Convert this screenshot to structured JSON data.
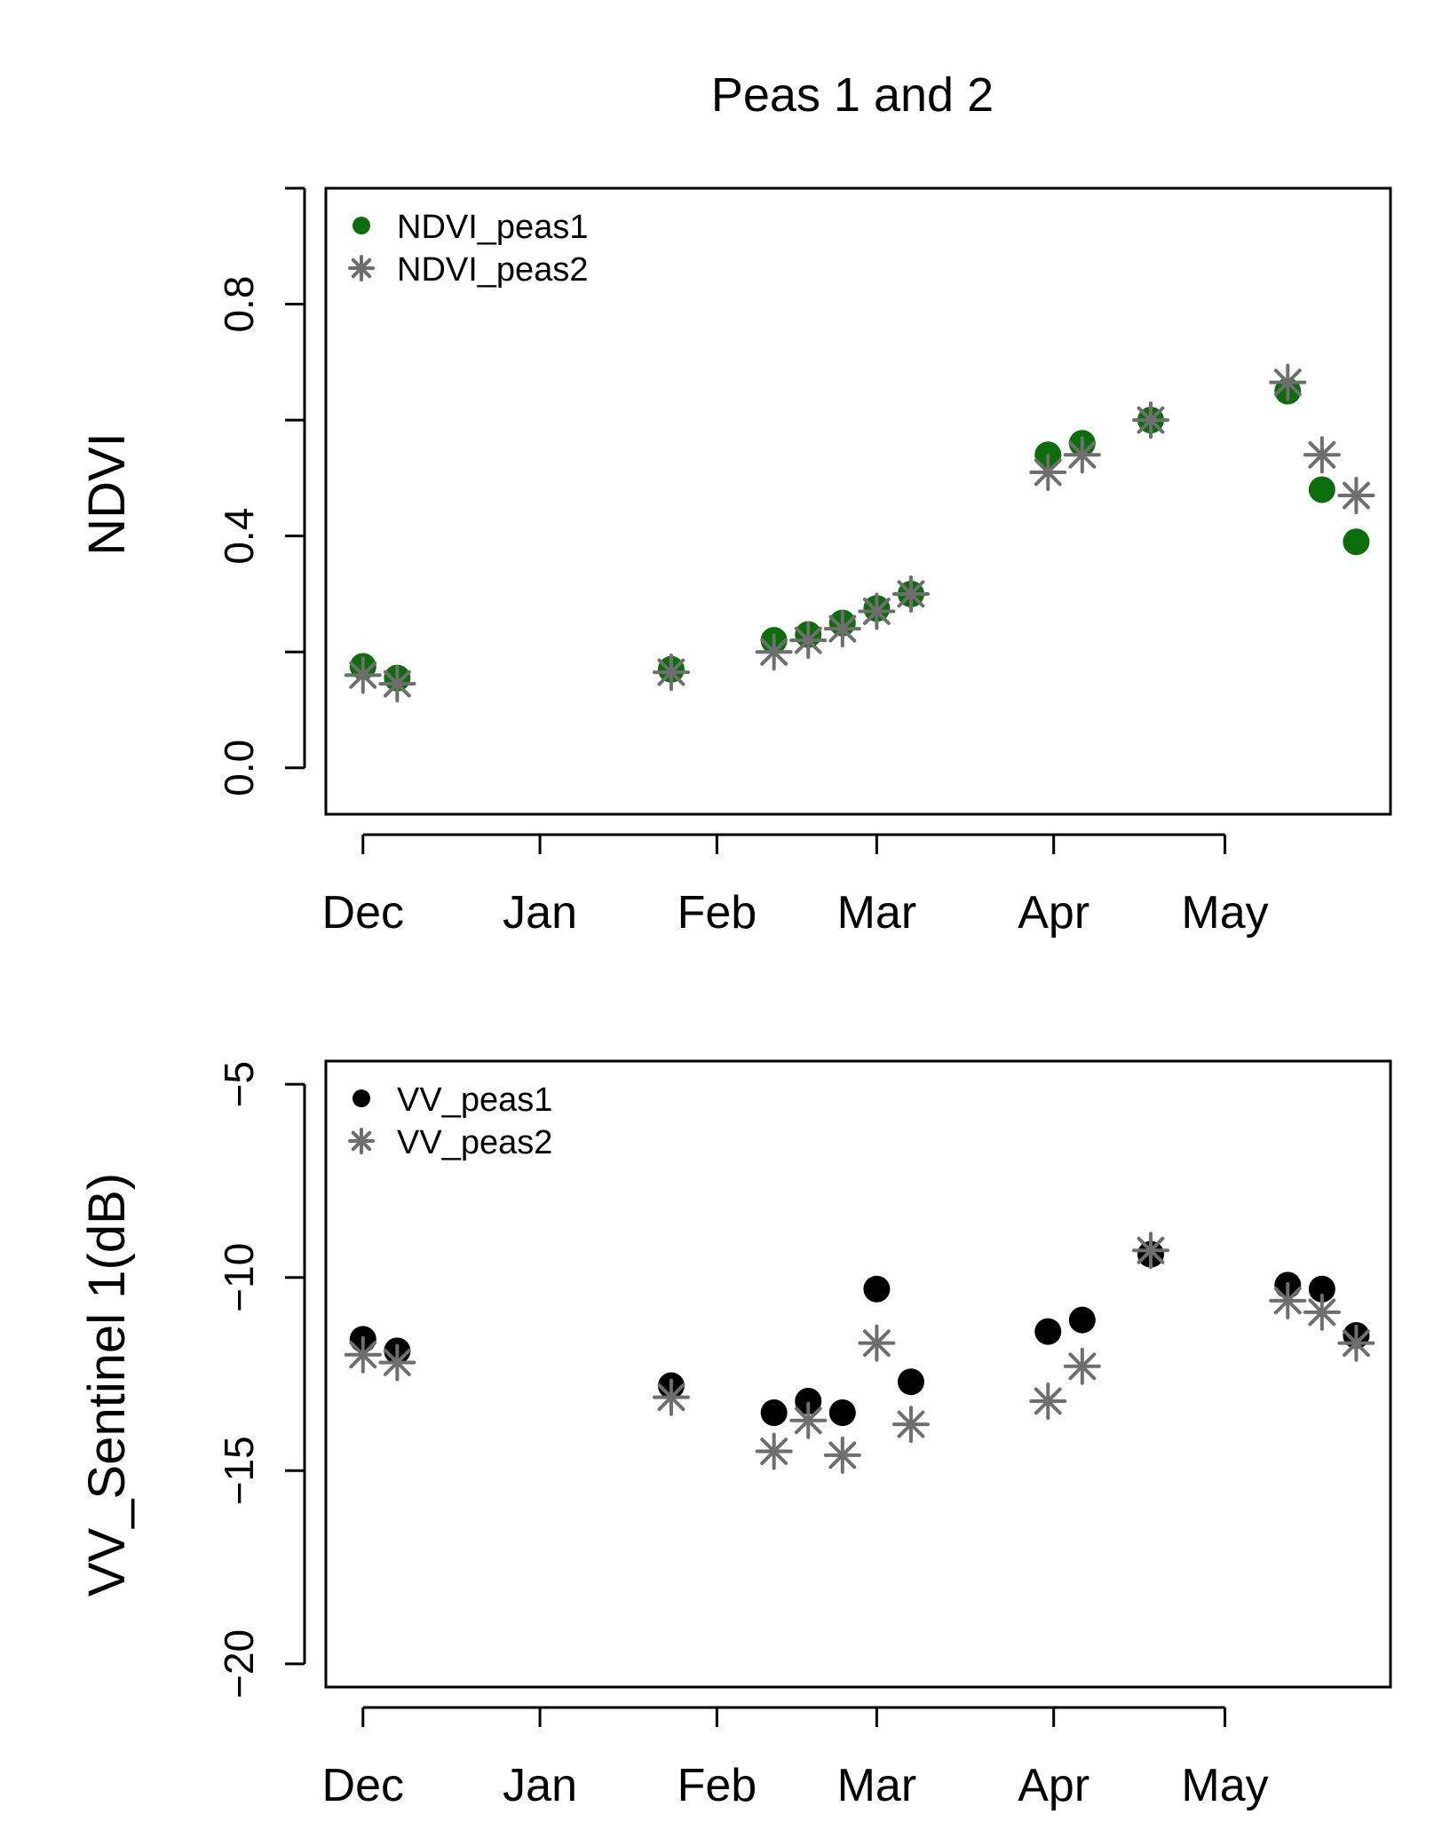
{
  "title": "Peas 1 and 2",
  "colors": {
    "ndvi_peas1": "#0b6e0b",
    "peas2_star": "#707070",
    "vv_peas1": "#000000"
  },
  "chart_data": [
    {
      "type": "scatter",
      "ylabel": "NDVI",
      "xlabel": "",
      "x_ticks": [
        "Dec",
        "Jan",
        "Feb",
        "Mar",
        "Apr",
        "May"
      ],
      "x_tick_days": [
        0,
        31,
        62,
        90,
        121,
        151
      ],
      "xlim": [
        -6.5,
        180
      ],
      "y_ticks": [
        "0.0",
        "0.4",
        "0.8"
      ],
      "y_tick_values": [
        0.0,
        0.4,
        0.8
      ],
      "ylim": [
        -0.08,
        1.0
      ],
      "grid": false,
      "legend_position": "top-left",
      "legend": [
        "NDVI_peas1",
        "NDVI_peas2"
      ],
      "series": [
        {
          "name": "NDVI_peas1",
          "marker": "dot",
          "x": [
            0,
            6,
            54,
            72,
            78,
            84,
            90,
            96,
            120,
            126,
            138,
            162,
            168,
            174
          ],
          "y": [
            0.175,
            0.155,
            0.17,
            0.22,
            0.23,
            0.25,
            0.275,
            0.3,
            0.54,
            0.56,
            0.6,
            0.65,
            0.48,
            0.39
          ]
        },
        {
          "name": "NDVI_peas2",
          "marker": "star",
          "x": [
            0,
            6,
            54,
            72,
            78,
            84,
            90,
            96,
            120,
            126,
            138,
            162,
            168,
            174
          ],
          "y": [
            0.16,
            0.145,
            0.165,
            0.2,
            0.22,
            0.24,
            0.27,
            0.3,
            0.51,
            0.54,
            0.6,
            0.665,
            0.54,
            0.47
          ]
        }
      ]
    },
    {
      "type": "scatter",
      "ylabel": "VV_Sentinel 1(dB)",
      "xlabel": "",
      "x_ticks": [
        "Dec",
        "Jan",
        "Feb",
        "Mar",
        "Apr",
        "May"
      ],
      "x_tick_days": [
        0,
        31,
        62,
        90,
        121,
        151
      ],
      "xlim": [
        -6.5,
        180
      ],
      "y_ticks": [
        "−20",
        "−15",
        "−10",
        "−5"
      ],
      "y_tick_values": [
        -20,
        -15,
        -10,
        -5
      ],
      "ylim": [
        -20.6,
        -4.4
      ],
      "grid": false,
      "legend_position": "top-left",
      "legend": [
        "VV_peas1",
        "VV_peas2"
      ],
      "series": [
        {
          "name": "VV_peas1",
          "marker": "dot",
          "x": [
            0,
            6,
            54,
            72,
            78,
            84,
            90,
            96,
            120,
            126,
            138,
            162,
            168,
            174
          ],
          "y": [
            -11.6,
            -11.9,
            -12.8,
            -13.5,
            -13.2,
            -13.5,
            -10.3,
            -12.7,
            -11.4,
            -11.1,
            -9.4,
            -10.2,
            -10.3,
            -11.5
          ]
        },
        {
          "name": "VV_peas2",
          "marker": "star",
          "x": [
            0,
            6,
            54,
            72,
            78,
            84,
            90,
            96,
            120,
            126,
            138,
            162,
            168,
            174
          ],
          "y": [
            -12.0,
            -12.2,
            -13.1,
            -14.5,
            -13.7,
            -14.6,
            -11.7,
            -13.8,
            -13.2,
            -12.3,
            -9.3,
            -10.6,
            -10.9,
            -11.7
          ]
        }
      ]
    }
  ]
}
